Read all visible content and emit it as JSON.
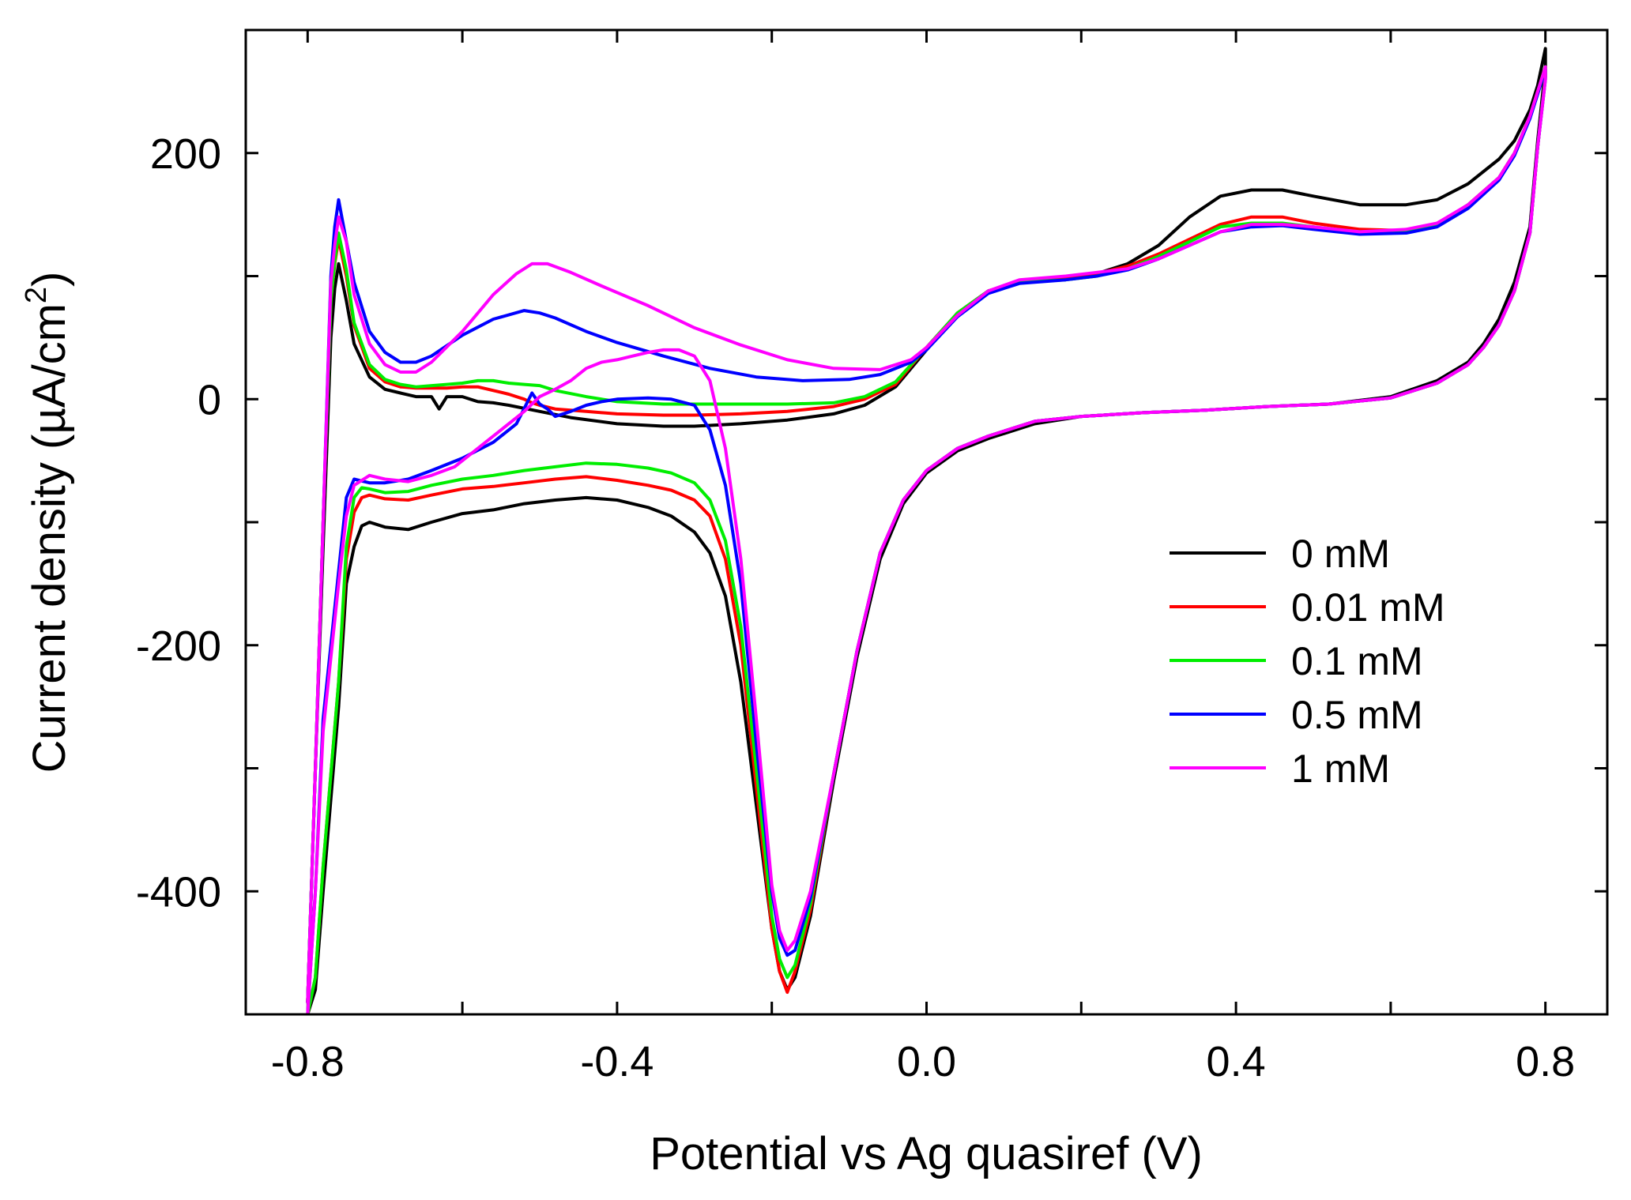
{
  "chart_data": {
    "type": "line",
    "title": "",
    "xlabel": "Potential vs Ag quasiref (V)",
    "ylabel_prefix": "Current density (µA/cm",
    "ylabel_sup": "2",
    "ylabel_suffix": ")",
    "xlim": [
      -0.88,
      0.88
    ],
    "ylim": [
      -500,
      300
    ],
    "xticks": [
      -0.8,
      -0.4,
      0.0,
      0.4,
      0.8
    ],
    "xtick_labels": [
      "-0.8",
      "-0.4",
      "0.0",
      "0.4",
      "0.8"
    ],
    "yticks": [
      -400,
      -200,
      0,
      200
    ],
    "ytick_labels": [
      "-400",
      "-200",
      "0",
      "200"
    ],
    "x_minor_ticks": [
      -0.6,
      -0.2,
      0.2,
      0.6
    ],
    "y_minor_ticks": [
      -300,
      -100,
      100
    ],
    "grid": false,
    "legend_position": "right-middle",
    "series": [
      {
        "name": "0 mM",
        "color": "#000000",
        "x": [
          -0.8,
          -0.79,
          -0.78,
          -0.77,
          -0.765,
          -0.76,
          -0.75,
          -0.74,
          -0.72,
          -0.7,
          -0.68,
          -0.66,
          -0.64,
          -0.63,
          -0.62,
          -0.6,
          -0.58,
          -0.56,
          -0.54,
          -0.5,
          -0.46,
          -0.4,
          -0.34,
          -0.3,
          -0.24,
          -0.18,
          -0.12,
          -0.08,
          -0.04,
          0.0,
          0.04,
          0.08,
          0.12,
          0.18,
          0.22,
          0.26,
          0.3,
          0.34,
          0.38,
          0.42,
          0.46,
          0.5,
          0.56,
          0.62,
          0.66,
          0.7,
          0.74,
          0.76,
          0.78,
          0.79,
          0.8,
          0.8,
          0.79,
          0.78,
          0.76,
          0.74,
          0.72,
          0.7,
          0.66,
          0.6,
          0.52,
          0.44,
          0.36,
          0.28,
          0.2,
          0.14,
          0.08,
          0.04,
          0.0,
          -0.03,
          -0.06,
          -0.09,
          -0.12,
          -0.15,
          -0.17,
          -0.18,
          -0.19,
          -0.2,
          -0.22,
          -0.24,
          -0.26,
          -0.28,
          -0.3,
          -0.33,
          -0.36,
          -0.4,
          -0.44,
          -0.48,
          -0.52,
          -0.56,
          -0.6,
          -0.64,
          -0.67,
          -0.7,
          -0.72,
          -0.73,
          -0.74,
          -0.75,
          -0.76,
          -0.78,
          -0.79,
          -0.8
        ],
        "y": [
          -490,
          -300,
          -120,
          50,
          90,
          110,
          80,
          45,
          18,
          8,
          5,
          2,
          2,
          -8,
          2,
          2,
          -2,
          -3,
          -5,
          -10,
          -15,
          -20,
          -22,
          -22,
          -20,
          -17,
          -12,
          -5,
          10,
          40,
          70,
          88,
          95,
          98,
          102,
          110,
          125,
          148,
          165,
          170,
          170,
          165,
          158,
          158,
          162,
          175,
          195,
          210,
          235,
          255,
          285,
          270,
          210,
          140,
          95,
          65,
          45,
          30,
          15,
          2,
          -4,
          -6,
          -9,
          -11,
          -14,
          -20,
          -32,
          -42,
          -60,
          -85,
          -130,
          -210,
          -310,
          -420,
          -470,
          -480,
          -465,
          -430,
          -330,
          -230,
          -160,
          -125,
          -108,
          -95,
          -88,
          -82,
          -80,
          -82,
          -85,
          -90,
          -93,
          -100,
          -106,
          -104,
          -100,
          -103,
          -120,
          -150,
          -250,
          -400,
          -480,
          -500
        ]
      },
      {
        "name": "0.01 mM",
        "color": "#ff0000",
        "x": [
          -0.8,
          -0.79,
          -0.78,
          -0.77,
          -0.765,
          -0.76,
          -0.75,
          -0.74,
          -0.72,
          -0.7,
          -0.68,
          -0.66,
          -0.64,
          -0.62,
          -0.6,
          -0.58,
          -0.56,
          -0.54,
          -0.52,
          -0.51,
          -0.5,
          -0.48,
          -0.44,
          -0.4,
          -0.34,
          -0.3,
          -0.24,
          -0.18,
          -0.12,
          -0.08,
          -0.04,
          0.0,
          0.04,
          0.08,
          0.12,
          0.18,
          0.22,
          0.26,
          0.3,
          0.34,
          0.38,
          0.42,
          0.46,
          0.5,
          0.56,
          0.62,
          0.66,
          0.7,
          0.74,
          0.76,
          0.78,
          0.79,
          0.8,
          0.8,
          0.79,
          0.78,
          0.76,
          0.74,
          0.72,
          0.7,
          0.66,
          0.6,
          0.52,
          0.44,
          0.36,
          0.28,
          0.2,
          0.14,
          0.08,
          0.04,
          0.0,
          -0.03,
          -0.06,
          -0.09,
          -0.12,
          -0.15,
          -0.17,
          -0.18,
          -0.19,
          -0.2,
          -0.22,
          -0.24,
          -0.26,
          -0.28,
          -0.3,
          -0.33,
          -0.36,
          -0.4,
          -0.44,
          -0.48,
          -0.52,
          -0.56,
          -0.6,
          -0.64,
          -0.67,
          -0.7,
          -0.72,
          -0.73,
          -0.74,
          -0.75,
          -0.76,
          -0.78,
          -0.79,
          -0.8
        ],
        "y": [
          -490,
          -300,
          -100,
          80,
          110,
          130,
          100,
          60,
          25,
          14,
          10,
          9,
          9,
          9,
          10,
          10,
          7,
          4,
          0,
          -3,
          -5,
          -8,
          -10,
          -12,
          -13,
          -13,
          -12,
          -10,
          -6,
          0,
          12,
          42,
          70,
          88,
          95,
          98,
          102,
          108,
          118,
          130,
          142,
          148,
          148,
          143,
          138,
          137,
          142,
          158,
          180,
          200,
          230,
          250,
          270,
          262,
          205,
          135,
          88,
          60,
          42,
          28,
          13,
          1,
          -4,
          -6,
          -9,
          -11,
          -14,
          -18,
          -30,
          -40,
          -58,
          -82,
          -125,
          -205,
          -305,
          -415,
          -465,
          -482,
          -465,
          -430,
          -315,
          -200,
          -130,
          -95,
          -82,
          -74,
          -70,
          -66,
          -63,
          -65,
          -68,
          -71,
          -73,
          -78,
          -82,
          -81,
          -78,
          -80,
          -92,
          -130,
          -230,
          -380,
          -470,
          -500
        ]
      },
      {
        "name": "0.1 mM",
        "color": "#00ee00",
        "x": [
          -0.8,
          -0.79,
          -0.78,
          -0.77,
          -0.765,
          -0.76,
          -0.75,
          -0.74,
          -0.72,
          -0.7,
          -0.68,
          -0.66,
          -0.62,
          -0.6,
          -0.58,
          -0.56,
          -0.54,
          -0.52,
          -0.5,
          -0.48,
          -0.44,
          -0.4,
          -0.34,
          -0.3,
          -0.24,
          -0.18,
          -0.12,
          -0.08,
          -0.04,
          0.0,
          0.04,
          0.08,
          0.12,
          0.18,
          0.22,
          0.26,
          0.3,
          0.34,
          0.38,
          0.42,
          0.46,
          0.5,
          0.56,
          0.62,
          0.66,
          0.7,
          0.74,
          0.76,
          0.78,
          0.79,
          0.8,
          0.8,
          0.79,
          0.78,
          0.76,
          0.74,
          0.72,
          0.7,
          0.66,
          0.6,
          0.52,
          0.44,
          0.36,
          0.28,
          0.2,
          0.14,
          0.08,
          0.04,
          0.0,
          -0.03,
          -0.06,
          -0.09,
          -0.12,
          -0.15,
          -0.17,
          -0.18,
          -0.19,
          -0.2,
          -0.22,
          -0.24,
          -0.26,
          -0.28,
          -0.3,
          -0.33,
          -0.36,
          -0.4,
          -0.44,
          -0.48,
          -0.52,
          -0.56,
          -0.6,
          -0.64,
          -0.67,
          -0.7,
          -0.72,
          -0.73,
          -0.74,
          -0.75,
          -0.76,
          -0.78,
          -0.79,
          -0.8
        ],
        "y": [
          -490,
          -300,
          -100,
          80,
          112,
          135,
          105,
          62,
          28,
          16,
          12,
          10,
          12,
          13,
          15,
          15,
          13,
          12,
          11,
          7,
          2,
          -2,
          -4,
          -4,
          -4,
          -4,
          -3,
          2,
          14,
          42,
          70,
          88,
          95,
          97,
          100,
          106,
          116,
          128,
          140,
          143,
          143,
          140,
          136,
          136,
          142,
          158,
          180,
          200,
          230,
          250,
          270,
          262,
          205,
          135,
          88,
          60,
          42,
          28,
          13,
          1,
          -4,
          -6,
          -9,
          -11,
          -14,
          -18,
          -30,
          -40,
          -58,
          -82,
          -125,
          -205,
          -305,
          -410,
          -460,
          -470,
          -455,
          -420,
          -300,
          -185,
          -115,
          -82,
          -68,
          -60,
          -56,
          -53,
          -52,
          -55,
          -58,
          -62,
          -65,
          -70,
          -75,
          -76,
          -73,
          -72,
          -80,
          -120,
          -230,
          -380,
          -470,
          -500
        ]
      },
      {
        "name": "0.5 mM",
        "color": "#0000ff",
        "x": [
          -0.8,
          -0.79,
          -0.78,
          -0.77,
          -0.765,
          -0.76,
          -0.755,
          -0.74,
          -0.72,
          -0.7,
          -0.68,
          -0.66,
          -0.64,
          -0.6,
          -0.56,
          -0.52,
          -0.5,
          -0.48,
          -0.44,
          -0.4,
          -0.34,
          -0.28,
          -0.22,
          -0.16,
          -0.1,
          -0.06,
          -0.02,
          0.0,
          0.04,
          0.08,
          0.12,
          0.18,
          0.22,
          0.26,
          0.3,
          0.34,
          0.38,
          0.42,
          0.46,
          0.5,
          0.56,
          0.62,
          0.66,
          0.7,
          0.74,
          0.76,
          0.78,
          0.79,
          0.8,
          0.8,
          0.79,
          0.78,
          0.76,
          0.74,
          0.72,
          0.7,
          0.66,
          0.6,
          0.52,
          0.44,
          0.36,
          0.28,
          0.2,
          0.14,
          0.08,
          0.04,
          0.0,
          -0.03,
          -0.06,
          -0.09,
          -0.12,
          -0.15,
          -0.17,
          -0.18,
          -0.19,
          -0.2,
          -0.22,
          -0.24,
          -0.26,
          -0.28,
          -0.3,
          -0.33,
          -0.36,
          -0.4,
          -0.42,
          -0.44,
          -0.46,
          -0.48,
          -0.49,
          -0.5,
          -0.51,
          -0.53,
          -0.56,
          -0.6,
          -0.64,
          -0.67,
          -0.7,
          -0.72,
          -0.74,
          -0.75,
          -0.76,
          -0.78,
          -0.79,
          -0.8
        ],
        "y": [
          -490,
          -300,
          -100,
          100,
          140,
          162,
          145,
          95,
          55,
          38,
          30,
          30,
          35,
          52,
          65,
          72,
          70,
          66,
          55,
          46,
          35,
          25,
          18,
          15,
          16,
          20,
          30,
          40,
          67,
          86,
          94,
          97,
          100,
          105,
          114,
          125,
          136,
          140,
          141,
          138,
          134,
          135,
          140,
          155,
          178,
          198,
          228,
          248,
          268,
          260,
          205,
          135,
          88,
          60,
          42,
          28,
          13,
          1,
          -4,
          -6,
          -9,
          -11,
          -14,
          -18,
          -30,
          -40,
          -58,
          -82,
          -125,
          -205,
          -305,
          -405,
          -448,
          -452,
          -438,
          -400,
          -280,
          -150,
          -70,
          -25,
          -5,
          0,
          1,
          0,
          -2,
          -5,
          -10,
          -14,
          -8,
          -4,
          5,
          -20,
          -35,
          -48,
          -58,
          -65,
          -68,
          -68,
          -65,
          -80,
          -140,
          -260,
          -400,
          -500
        ]
      },
      {
        "name": "1 mM",
        "color": "#ff00ff",
        "x": [
          -0.8,
          -0.79,
          -0.78,
          -0.77,
          -0.765,
          -0.76,
          -0.75,
          -0.74,
          -0.72,
          -0.7,
          -0.68,
          -0.66,
          -0.64,
          -0.6,
          -0.56,
          -0.53,
          -0.51,
          -0.49,
          -0.46,
          -0.42,
          -0.36,
          -0.3,
          -0.24,
          -0.18,
          -0.12,
          -0.06,
          -0.02,
          0.0,
          0.04,
          0.08,
          0.12,
          0.18,
          0.22,
          0.26,
          0.3,
          0.34,
          0.38,
          0.42,
          0.46,
          0.5,
          0.56,
          0.62,
          0.66,
          0.7,
          0.74,
          0.76,
          0.78,
          0.79,
          0.8,
          0.8,
          0.79,
          0.78,
          0.76,
          0.74,
          0.72,
          0.7,
          0.66,
          0.6,
          0.52,
          0.44,
          0.36,
          0.28,
          0.2,
          0.14,
          0.08,
          0.04,
          0.0,
          -0.03,
          -0.06,
          -0.09,
          -0.12,
          -0.15,
          -0.17,
          -0.18,
          -0.19,
          -0.2,
          -0.22,
          -0.24,
          -0.26,
          -0.28,
          -0.3,
          -0.32,
          -0.34,
          -0.36,
          -0.38,
          -0.4,
          -0.42,
          -0.44,
          -0.46,
          -0.48,
          -0.5,
          -0.52,
          -0.55,
          -0.58,
          -0.61,
          -0.64,
          -0.67,
          -0.7,
          -0.72,
          -0.74,
          -0.75,
          -0.76,
          -0.78,
          -0.79,
          -0.8
        ],
        "y": [
          -490,
          -300,
          -100,
          95,
          125,
          148,
          128,
          85,
          45,
          28,
          22,
          22,
          30,
          55,
          85,
          102,
          110,
          110,
          103,
          92,
          76,
          58,
          44,
          32,
          25,
          24,
          32,
          42,
          68,
          88,
          97,
          100,
          103,
          106,
          114,
          125,
          136,
          142,
          142,
          140,
          136,
          138,
          143,
          158,
          180,
          200,
          230,
          250,
          270,
          260,
          205,
          135,
          88,
          60,
          42,
          28,
          13,
          1,
          -4,
          -6,
          -9,
          -11,
          -14,
          -18,
          -30,
          -40,
          -58,
          -82,
          -125,
          -205,
          -305,
          -400,
          -440,
          -448,
          -432,
          -395,
          -260,
          -130,
          -40,
          15,
          35,
          40,
          40,
          38,
          35,
          32,
          30,
          25,
          15,
          8,
          2,
          -10,
          -25,
          -40,
          -55,
          -62,
          -67,
          -65,
          -62,
          -70,
          -95,
          -150,
          -270,
          -400,
          -500
        ]
      }
    ]
  }
}
